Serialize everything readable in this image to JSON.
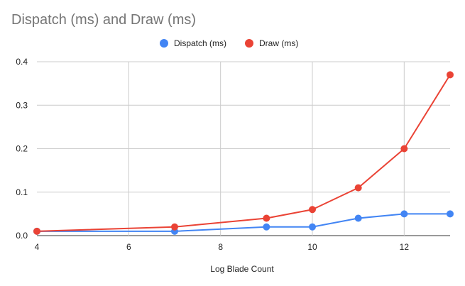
{
  "chart_data": {
    "type": "line",
    "title": "Dispatch (ms) and Draw (ms)",
    "xlabel": "Log Blade Count",
    "ylabel": "",
    "xlim": [
      4,
      13
    ],
    "ylim": [
      0,
      0.4
    ],
    "x_ticks": [
      "4",
      "6",
      "8",
      "10",
      "12"
    ],
    "y_ticks": [
      "0.0",
      "0.1",
      "0.2",
      "0.3",
      "0.4"
    ],
    "x_tick_values": [
      4,
      6,
      8,
      10,
      12
    ],
    "y_tick_values": [
      0,
      0.1,
      0.2,
      0.3,
      0.4
    ],
    "grid": true,
    "legend_position": "top-center",
    "x": [
      4,
      7,
      9,
      10,
      11,
      12,
      13
    ],
    "series": [
      {
        "name": "Dispatch (ms)",
        "color": "#4285f4",
        "values": [
          0.01,
          0.01,
          0.02,
          0.02,
          0.04,
          0.05,
          0.05
        ]
      },
      {
        "name": "Draw (ms)",
        "color": "#ea4335",
        "values": [
          0.01,
          0.02,
          0.04,
          0.06,
          0.11,
          0.2,
          0.37
        ]
      }
    ]
  }
}
